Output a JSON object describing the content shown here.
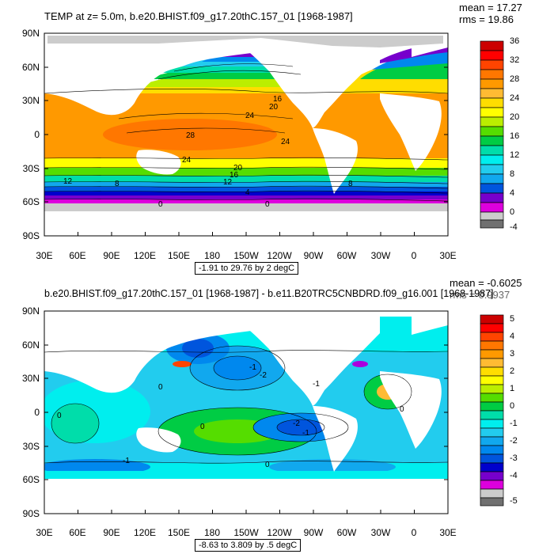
{
  "panel1": {
    "title": "TEMP at z=   5.0m, b.e20.BHIST.f09_g17.20thC.157_01 [1968-1987]",
    "mean": "mean = 17.27",
    "rms": "rms = 19.86",
    "range_text": "-1.91 to 29.76 by 2 degC",
    "y_ticks": [
      "90N",
      "60N",
      "30N",
      "0",
      "30S",
      "60S",
      "90S"
    ],
    "x_ticks": [
      "30E",
      "60E",
      "90E",
      "120E",
      "150E",
      "180",
      "150W",
      "120W",
      "90W",
      "60W",
      "30W",
      "0",
      "30E"
    ],
    "colorbar_labels": [
      "36",
      "32",
      "28",
      "24",
      "20",
      "16",
      "12",
      "8",
      "4",
      "0",
      "-4"
    ],
    "colors": [
      "#cc0000",
      "#ff0000",
      "#ff4400",
      "#ff7700",
      "#ff9900",
      "#ffbb33",
      "#ffdd00",
      "#ffff00",
      "#bbee00",
      "#55dd00",
      "#00cc44",
      "#00ddaa",
      "#00eeee",
      "#22ccee",
      "#11a8ee",
      "#0088ee",
      "#0055dd",
      "#0000cc",
      "#7700cc",
      "#aa00dd",
      "#dd00dd",
      "#ffffff",
      "#cccccc",
      "#707070"
    ],
    "contour_labels": [
      "16",
      "20",
      "24",
      "28",
      "24",
      "24",
      "20",
      "16",
      "12",
      "12",
      "8",
      "8",
      "4",
      "0",
      "0",
      "4"
    ]
  },
  "panel2": {
    "title": "b.e20.BHIST.f09_g17.20thC.157_01 [1968-1987] - b.e11.B20TRC5CNBDRD.f09_g16.001 [1968-1987]",
    "mean": "mean = -0.6025",
    "rms": "rms = 0.9937",
    "range_text": "-8.63 to 3.809 by .5 degC",
    "y_ticks": [
      "90N",
      "60N",
      "30N",
      "0",
      "30S",
      "60S",
      "90S"
    ],
    "x_ticks": [
      "30E",
      "60E",
      "90E",
      "120E",
      "150E",
      "180",
      "150W",
      "120W",
      "90W",
      "60W",
      "30W",
      "0",
      "30E"
    ],
    "colorbar_labels": [
      "5",
      "4",
      "3",
      "2",
      "1",
      "0",
      "-1",
      "-2",
      "-3",
      "-4",
      "-5"
    ],
    "colors": [
      "#cc0000",
      "#ff0000",
      "#ff4400",
      "#ff7700",
      "#ff9900",
      "#ffbb33",
      "#ffdd00",
      "#ffff00",
      "#bbee00",
      "#55dd00",
      "#00cc44",
      "#00ddaa",
      "#00eeee",
      "#22ccee",
      "#11a8ee",
      "#0088ee",
      "#0055dd",
      "#0000cc",
      "#7700cc",
      "#aa00dd",
      "#dd00dd",
      "#ffffff",
      "#cccccc",
      "#707070"
    ],
    "contour_labels": [
      "-1",
      "0",
      "-1",
      "-2",
      "0",
      "0",
      "-1",
      "0",
      "-1",
      "-2",
      "0",
      "-1",
      "0"
    ]
  }
}
